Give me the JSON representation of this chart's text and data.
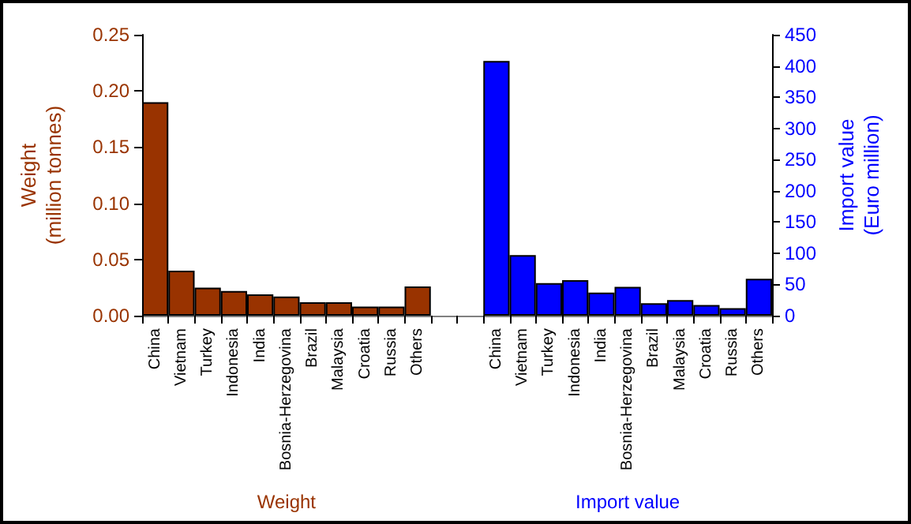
{
  "chart_data": {
    "type": "bar",
    "categories": [
      "China",
      "Vietnam",
      "Turkey",
      "Indonesia",
      "India",
      "Bosnia-Herzegovina",
      "Brazil",
      "Malaysia",
      "Croatia",
      "Russia",
      "Others",
      null,
      null,
      "China",
      "Vietnam",
      "Turkey",
      "Indonesia",
      "India",
      "Bosnia-Herzegovina",
      "Brazil",
      "Malaysia",
      "Croatia",
      "Russia",
      "Others"
    ],
    "series": [
      {
        "color": "#993300",
        "values": [
          0.19,
          0.04,
          0.025,
          0.022,
          0.019,
          0.017,
          0.012,
          0.012,
          0.008,
          0.008,
          0.026,
          null,
          null,
          null,
          null,
          null,
          null,
          null,
          null,
          null,
          null,
          null,
          null,
          null
        ]
      },
      {
        "color": "#0000ff",
        "axis": "y2",
        "values": [
          null,
          null,
          null,
          null,
          null,
          null,
          null,
          null,
          null,
          null,
          null,
          null,
          null,
          408,
          97,
          52,
          57,
          37,
          46,
          20,
          25,
          17,
          12,
          59
        ]
      }
    ],
    "ylabel": "Weight\n(million tonnes)",
    "y2label": "Import value\n(Euro million)",
    "ylim": [
      0,
      0.25
    ],
    "yticks": [
      {
        "value": 0,
        "label": "0.00"
      },
      0.05,
      {
        "value": 0.1,
        "label": "0.10"
      },
      0.15,
      {
        "value": 0.2,
        "label": "0.20"
      },
      0.25
    ],
    "y2lim": [
      0,
      450
    ],
    "y2ticks": [
      0,
      50,
      100,
      150,
      200,
      250,
      300,
      350,
      400,
      450
    ],
    "annotations": [
      "Weight",
      "Import value"
    ],
    "grid": false
  }
}
